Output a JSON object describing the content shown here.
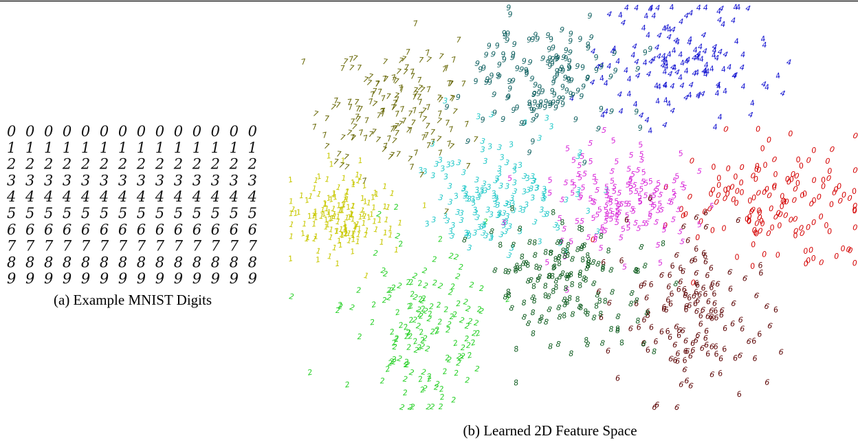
{
  "figure": {
    "digit_grid": {
      "rows": [
        "00000000000000",
        "11111111111111",
        "22222222222222",
        "33333333333333",
        "44444444444444",
        "55555555555555",
        "66666666666666",
        "77777777777777",
        "88888888888888",
        "99999999999999"
      ],
      "caption": "(a) Example MNIST Digits"
    },
    "feature_space": {
      "clusters": [
        {
          "digit": "0",
          "color": "#d40000"
        },
        {
          "digit": "1",
          "color": "#c8c800"
        },
        {
          "digit": "2",
          "color": "#28d028"
        },
        {
          "digit": "3",
          "color": "#20c8c8"
        },
        {
          "digit": "4",
          "color": "#1010d0"
        },
        {
          "digit": "5",
          "color": "#d824d8"
        },
        {
          "digit": "6",
          "color": "#5a0000"
        },
        {
          "digit": "7",
          "color": "#646400"
        },
        {
          "digit": "8",
          "color": "#0b5a1c"
        },
        {
          "digit": "9",
          "color": "#126262"
        }
      ],
      "caption": "(b) Learned 2D Feature Space"
    }
  }
}
